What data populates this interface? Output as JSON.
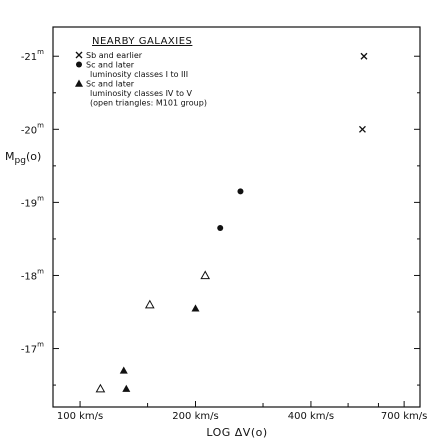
{
  "chart_data": {
    "type": "scatter",
    "title": "",
    "xlabel": "LOG ΔV(o)",
    "ylabel": "Mpg(o)",
    "x_scale": "log",
    "xlim": [
      85,
      770
    ],
    "ylim": [
      -16.2,
      -21.4
    ],
    "x_ticks": [
      {
        "value": 100,
        "label": "100 km/s"
      },
      {
        "value": 200,
        "label": "200 km/s"
      },
      {
        "value": 400,
        "label": "400 km/s"
      },
      {
        "value": 700,
        "label": "700 km/s"
      }
    ],
    "x_minor_ticks": [
      150,
      300,
      500,
      600
    ],
    "y_ticks": [
      {
        "value": -21,
        "label": "-21",
        "sup": "m"
      },
      {
        "value": -20,
        "label": "-20",
        "sup": "m"
      },
      {
        "value": -19,
        "label": "-19",
        "sup": "m"
      },
      {
        "value": -18,
        "label": "-18",
        "sup": "m"
      },
      {
        "value": -17,
        "label": "-17",
        "sup": "m"
      }
    ],
    "y_ylabel_text": "Mpg",
    "y_ylabel_suffix": "(o)",
    "legend": {
      "title": "NEARBY GALAXIES",
      "entries": [
        {
          "marker": "x",
          "lines": [
            "Sb and earlier"
          ]
        },
        {
          "marker": "circle",
          "lines": [
            "Sc and later",
            "luminosity classes I to III"
          ]
        },
        {
          "marker": "triangle",
          "lines": [
            "Sc and later",
            "luminosity classes IV to V",
            "(open triangles: M101 group)"
          ]
        }
      ]
    },
    "series": [
      {
        "marker": "x",
        "values": [
          {
            "x": 550,
            "y": -21.0
          },
          {
            "x": 545,
            "y": -20.0
          }
        ]
      },
      {
        "marker": "circle",
        "values": [
          {
            "x": 232,
            "y": -18.65
          },
          {
            "x": 262,
            "y": -19.15
          }
        ]
      },
      {
        "marker": "triangle-filled",
        "values": [
          {
            "x": 130,
            "y": -16.7
          },
          {
            "x": 132,
            "y": -16.45
          },
          {
            "x": 200,
            "y": -17.55
          }
        ]
      },
      {
        "marker": "triangle-open",
        "values": [
          {
            "x": 113,
            "y": -16.45
          },
          {
            "x": 152,
            "y": -17.6
          },
          {
            "x": 212,
            "y": -18.0
          }
        ]
      }
    ]
  }
}
